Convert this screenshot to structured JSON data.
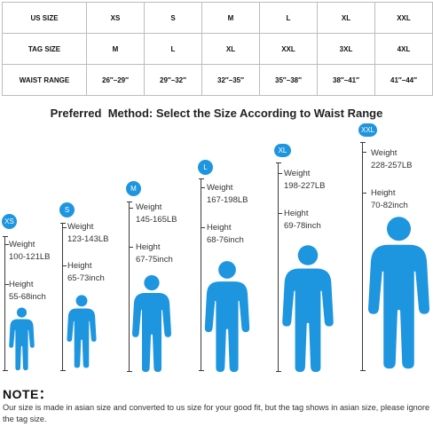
{
  "table": {
    "rows": [
      {
        "label": "US SIZE",
        "cells": [
          "XS",
          "S",
          "M",
          "L",
          "XL",
          "XXL"
        ]
      },
      {
        "label": "TAG SIZE",
        "cells": [
          "M",
          "L",
          "XL",
          "XXL",
          "3XL",
          "4XL"
        ]
      },
      {
        "label": "WAIST RANGE",
        "cells": [
          "26″–29″",
          "29″–32″",
          "32″–35″",
          "35″–38″",
          "38″–41″",
          "41″–44″"
        ]
      }
    ]
  },
  "heading": "Preferred  Method: Select the Size According to Waist Range",
  "figures": [
    {
      "size": "XS",
      "weight_label": "Weight",
      "weight": "100-121LB",
      "height_label": "Height",
      "height": "55-68inch"
    },
    {
      "size": "S",
      "weight_label": "Weight",
      "weight": "123-143LB",
      "height_label": "Height",
      "height": "65-73inch"
    },
    {
      "size": "M",
      "weight_label": "Weight",
      "weight": "145-165LB",
      "height_label": "Height",
      "height": "67-75inch"
    },
    {
      "size": "L",
      "weight_label": "Weight",
      "weight": "167-198LB",
      "height_label": "Height",
      "height": "68-76inch"
    },
    {
      "size": "XL",
      "weight_label": "Weight",
      "weight": "198-227LB",
      "height_label": "Height",
      "height": "69-78inch"
    },
    {
      "size": "XXL",
      "weight_label": "Weight",
      "weight": "228-257LB",
      "height_label": "Height",
      "height": "70-82inch"
    }
  ],
  "note": {
    "title": "NOTE：",
    "text": "Our size is made in asian size and converted to us size for your good fit, but the tag shows in asian size, please ignore the tag size."
  },
  "colors": {
    "accent": "#1e95df",
    "figure": "#1e95df"
  }
}
